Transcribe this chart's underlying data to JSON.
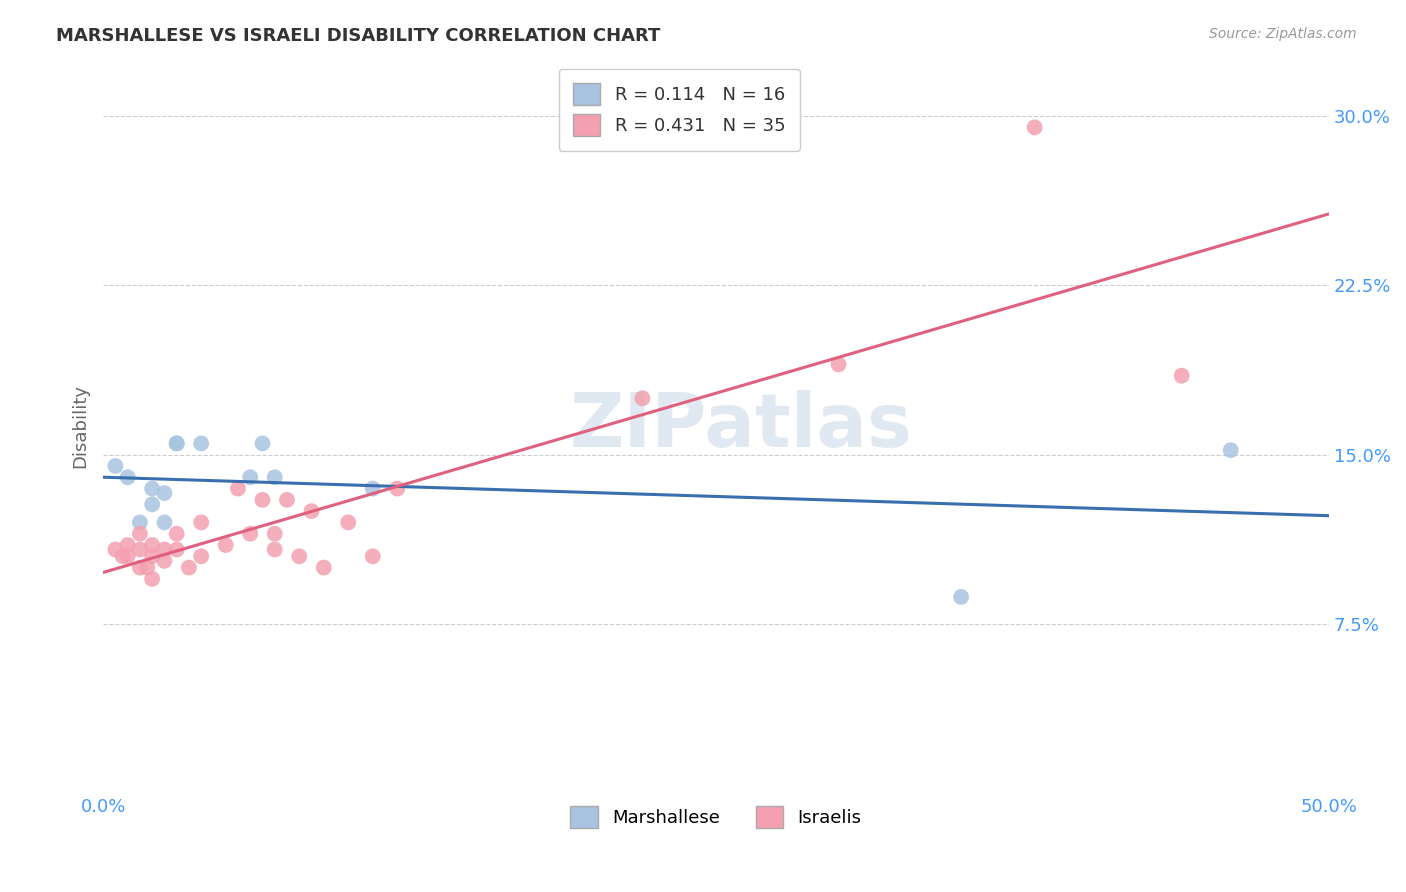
{
  "title": "MARSHALLESE VS ISRAELI DISABILITY CORRELATION CHART",
  "source": "Source: ZipAtlas.com",
  "ylabel": "Disability",
  "xlim": [
    0.0,
    0.5
  ],
  "ylim": [
    0.0,
    0.325
  ],
  "xticks": [
    0.0,
    0.1,
    0.2,
    0.3,
    0.4,
    0.5
  ],
  "xticklabels": [
    "0.0%",
    "",
    "",
    "",
    "",
    "50.0%"
  ],
  "yticks": [
    0.0,
    0.075,
    0.15,
    0.225,
    0.3
  ],
  "yticklabels": [
    "",
    "7.5%",
    "15.0%",
    "22.5%",
    "30.0%"
  ],
  "marshallese_x": [
    0.005,
    0.01,
    0.015,
    0.02,
    0.02,
    0.025,
    0.025,
    0.03,
    0.03,
    0.04,
    0.06,
    0.065,
    0.07,
    0.11,
    0.35,
    0.46
  ],
  "marshallese_y": [
    0.145,
    0.14,
    0.12,
    0.135,
    0.128,
    0.133,
    0.12,
    0.155,
    0.155,
    0.155,
    0.14,
    0.155,
    0.14,
    0.135,
    0.087,
    0.152
  ],
  "israeli_x": [
    0.005,
    0.008,
    0.01,
    0.01,
    0.015,
    0.015,
    0.015,
    0.018,
    0.02,
    0.02,
    0.02,
    0.025,
    0.025,
    0.03,
    0.03,
    0.035,
    0.04,
    0.04,
    0.05,
    0.055,
    0.06,
    0.065,
    0.07,
    0.07,
    0.075,
    0.08,
    0.085,
    0.09,
    0.1,
    0.11,
    0.12,
    0.22,
    0.3,
    0.38,
    0.44
  ],
  "israeli_y": [
    0.108,
    0.105,
    0.11,
    0.105,
    0.115,
    0.108,
    0.1,
    0.1,
    0.11,
    0.105,
    0.095,
    0.108,
    0.103,
    0.108,
    0.115,
    0.1,
    0.12,
    0.105,
    0.11,
    0.135,
    0.115,
    0.13,
    0.115,
    0.108,
    0.13,
    0.105,
    0.125,
    0.1,
    0.12,
    0.105,
    0.135,
    0.175,
    0.19,
    0.295,
    0.185
  ],
  "marshallese_color": "#a8c4e0",
  "israeli_color": "#f4a0b0",
  "marshallese_line_color": "#3a6faf",
  "israeli_line_color": "#e06080",
  "marshallese_R": 0.114,
  "marshallese_N": 16,
  "israeli_R": 0.431,
  "israeli_N": 35,
  "watermark": "ZIPatlas",
  "background_color": "#ffffff",
  "grid_color": "#cccccc",
  "axis_color": "#4499ff",
  "title_color": "#333333",
  "legend_label_marshallese": "Marshallese",
  "legend_label_israelis": "Israelis"
}
